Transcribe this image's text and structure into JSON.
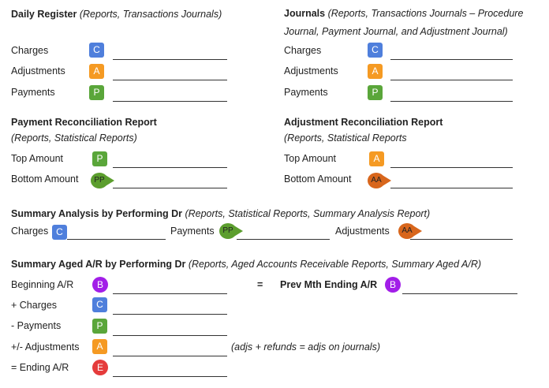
{
  "daily_register": {
    "title": "Daily Register",
    "source": "(Reports, Transactions Journals)",
    "rows": [
      {
        "label": "Charges",
        "badge": "C"
      },
      {
        "label": "Adjustments",
        "badge": "A"
      },
      {
        "label": "Payments",
        "badge": "P"
      }
    ]
  },
  "journals": {
    "title": "Journals",
    "source": "(Reports, Transactions Journals – Procedure Journal, Payment Journal, and Adjustment Journal)",
    "rows": [
      {
        "label": "Charges",
        "badge": "C"
      },
      {
        "label": "Adjustments",
        "badge": "A"
      },
      {
        "label": "Payments",
        "badge": "P"
      }
    ]
  },
  "payment_reconciliation": {
    "title": "Payment Reconciliation Report",
    "source": "(Reports, Statistical Reports)",
    "rows": [
      {
        "label": "Top Amount",
        "badge": "P"
      },
      {
        "label": "Bottom Amount",
        "badge": "PP"
      }
    ]
  },
  "adjustment_reconciliation": {
    "title": "Adjustment Reconciliation Report",
    "source": "(Reports, Statistical Reports",
    "rows": [
      {
        "label": "Top Amount",
        "badge": "A"
      },
      {
        "label": "Bottom Amount",
        "badge": "AA"
      }
    ]
  },
  "summary_analysis": {
    "title": "Summary Analysis by Performing Dr",
    "source": "(Reports, Statistical Reports, Summary Analysis Report)",
    "items": [
      {
        "label": "Charges",
        "badge": "C"
      },
      {
        "label": "Payments",
        "badge": "PP"
      },
      {
        "label": "Adjustments",
        "badge": "AA"
      }
    ]
  },
  "summary_aged": {
    "title": "Summary Aged A/R by Performing Dr",
    "source": "(Reports, Aged Accounts Receivable Reports, Summary Aged A/R)",
    "rows": [
      {
        "label": "Beginning A/R",
        "badge": "B"
      },
      {
        "label": "+ Charges",
        "badge": "C"
      },
      {
        "label": "- Payments",
        "badge": "P"
      },
      {
        "label": "+/- Adjustments",
        "badge": "A"
      },
      {
        "label": "= Ending A/R",
        "badge": "E"
      }
    ],
    "equals": "=",
    "prev_label": "Prev Mth Ending A/R",
    "prev_badge": "B",
    "note": "(adjs + refunds = adjs on journals)"
  }
}
